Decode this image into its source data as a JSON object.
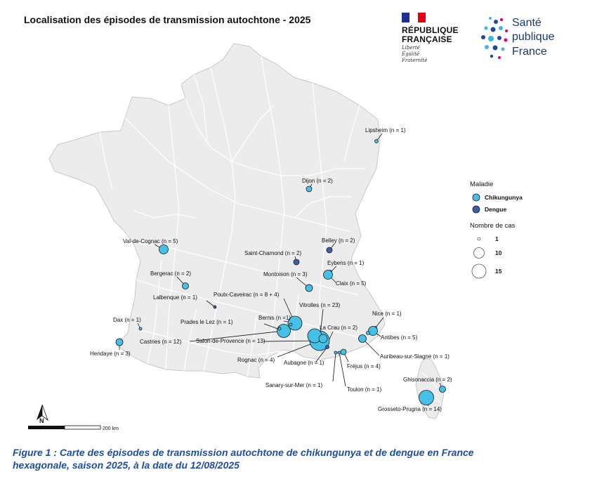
{
  "title": "Localisation des épisodes de transmission autochtone - 2025",
  "logos": {
    "republique_line1": "RÉPUBLIQUE",
    "republique_line2": "FRANÇAISE",
    "motto": [
      "Liberté",
      "Égalité",
      "Fraternité"
    ],
    "spf_line1": "Santé",
    "spf_line2": "publique",
    "spf_line3": "France"
  },
  "colors": {
    "chikungunya": "#45c1e8",
    "dengue": "#3e5fa3",
    "land": "#ececec",
    "borders": "#ffffff",
    "caption": "#1f4e9c"
  },
  "legend": {
    "disease_title": "Maladie",
    "diseases": [
      {
        "name": "Chikungunya",
        "color_key": "chikungunya"
      },
      {
        "name": "Dengue",
        "color_key": "dengue"
      }
    ],
    "size_title": "Nombre de cas",
    "sizes": [
      1,
      10,
      15
    ]
  },
  "scale_bar": {
    "label": "200 km"
  },
  "north_arrow": {
    "label": "N"
  },
  "map_data": {
    "type": "proportional-symbol",
    "episodes": [
      {
        "label": "Lipsheim (n = 1)",
        "disease": "chikungunya",
        "cases": 1
      },
      {
        "label": "Dijon (n = 2)",
        "disease": "chikungunya",
        "cases": 2
      },
      {
        "label": "Val-de-Cognac (n = 5)",
        "disease": "chikungunya",
        "cases": 5
      },
      {
        "label": "Belley (n = 2)",
        "disease": "dengue",
        "cases": 2
      },
      {
        "label": "Saint-Chamond (n = 2)",
        "disease": "dengue",
        "cases": 2
      },
      {
        "label": "Eybens (n = 1)",
        "disease": "chikungunya",
        "cases": 1
      },
      {
        "label": "Montoison (n = 3)",
        "disease": "chikungunya",
        "cases": 3
      },
      {
        "label": "Claix (n = 5)",
        "disease": "chikungunya",
        "cases": 5
      },
      {
        "label": "Bergerac (n = 2)",
        "disease": "chikungunya",
        "cases": 2
      },
      {
        "label": "Lalbenque (n = 1)",
        "disease": "dengue",
        "cases": 1
      },
      {
        "label": "Poulx-Caveirac (n = 8 + 4)",
        "disease": "chikungunya",
        "cases": 12
      },
      {
        "label": "Vitrolles (n = 23)",
        "disease": "chikungunya",
        "cases": 23
      },
      {
        "label": "Dax (n = 1)",
        "disease": "chikungunya",
        "cases": 1
      },
      {
        "label": "Prades le Lez (n = 1)",
        "disease": "chikungunya",
        "cases": 1
      },
      {
        "label": "Bernis (n =1)",
        "disease": "chikungunya",
        "cases": 1
      },
      {
        "label": "Nice (n = 1)",
        "disease": "chikungunya",
        "cases": 1
      },
      {
        "label": "La Crau (n = 2)",
        "disease": "chikungunya",
        "cases": 2
      },
      {
        "label": "Antibes (n = 5)",
        "disease": "chikungunya",
        "cases": 5
      },
      {
        "label": "Castries (n = 12)",
        "disease": "chikungunya",
        "cases": 12
      },
      {
        "label": "Salon-de-Provence (n = 13)",
        "disease": "chikungunya",
        "cases": 13
      },
      {
        "label": "Hendaye (n = 3)",
        "disease": "chikungunya",
        "cases": 3
      },
      {
        "label": "Auribeau-sur-Siagne (n = 1)",
        "disease": "chikungunya",
        "cases": 1
      },
      {
        "label": "Rognac (n = 4)",
        "disease": "chikungunya",
        "cases": 4
      },
      {
        "label": "Aubagne (n = 1)",
        "disease": "dengue",
        "cases": 1
      },
      {
        "label": "Fréjus (n = 4)",
        "disease": "chikungunya",
        "cases": 4
      },
      {
        "label": "Ghisonaccia (n = 2)",
        "disease": "chikungunya",
        "cases": 2
      },
      {
        "label": "Sanary-sur-Mer (n = 1)",
        "disease": "chikungunya",
        "cases": 1
      },
      {
        "label": "Toulon (n = 1)",
        "disease": "chikungunya",
        "cases": 1
      },
      {
        "label": "Grosseto-Prugna (n = 14)",
        "disease": "chikungunya",
        "cases": 14
      }
    ]
  },
  "caption_line1": "Figure 1 : Carte des épisodes de transmission autochtone de chikungunya et de dengue en France",
  "caption_line2": "hexagonale, saison 2025, à la date du 12/08/2025"
}
